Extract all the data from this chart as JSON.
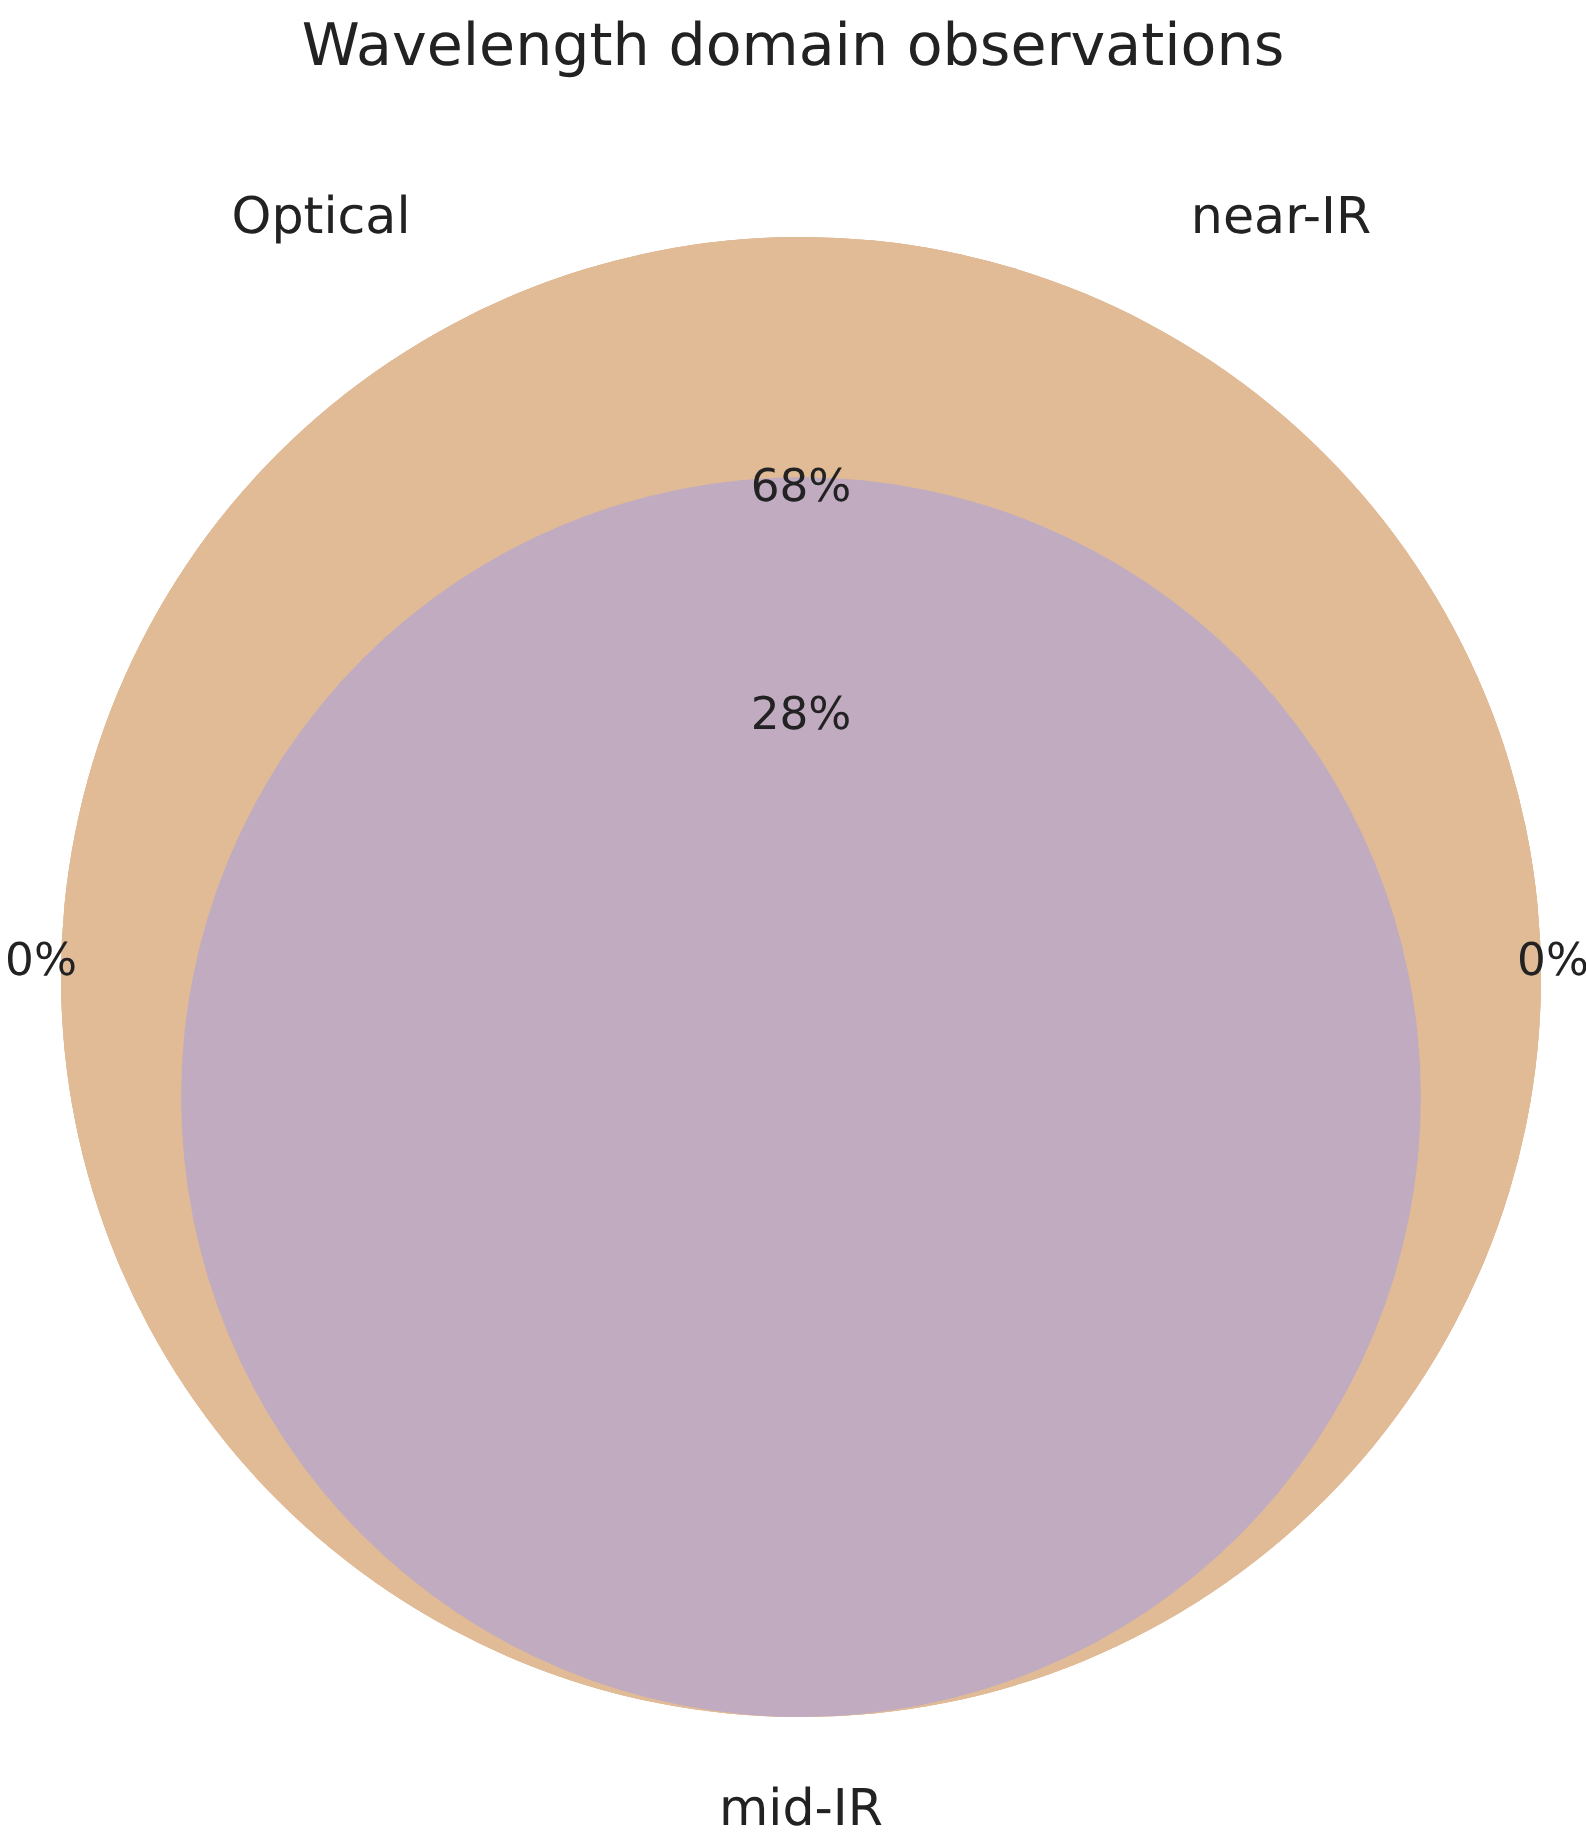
{
  "chart_data": {
    "type": "other",
    "title": "Wavelength domain observations",
    "categories": [
      null,
      null,
      null,
      null
    ],
    "values": [
      68,
      28,
      0,
      0
    ],
    "value_labels": [
      "68%",
      "28%",
      "0%",
      "0%"
    ],
    "colors": [
      "#e0bb96",
      "#c0abc0",
      "#e0bb96",
      "#e0bb96"
    ],
    "annotations": [
      "Optical",
      "near-IR",
      "mid-IR"
    ]
  }
}
